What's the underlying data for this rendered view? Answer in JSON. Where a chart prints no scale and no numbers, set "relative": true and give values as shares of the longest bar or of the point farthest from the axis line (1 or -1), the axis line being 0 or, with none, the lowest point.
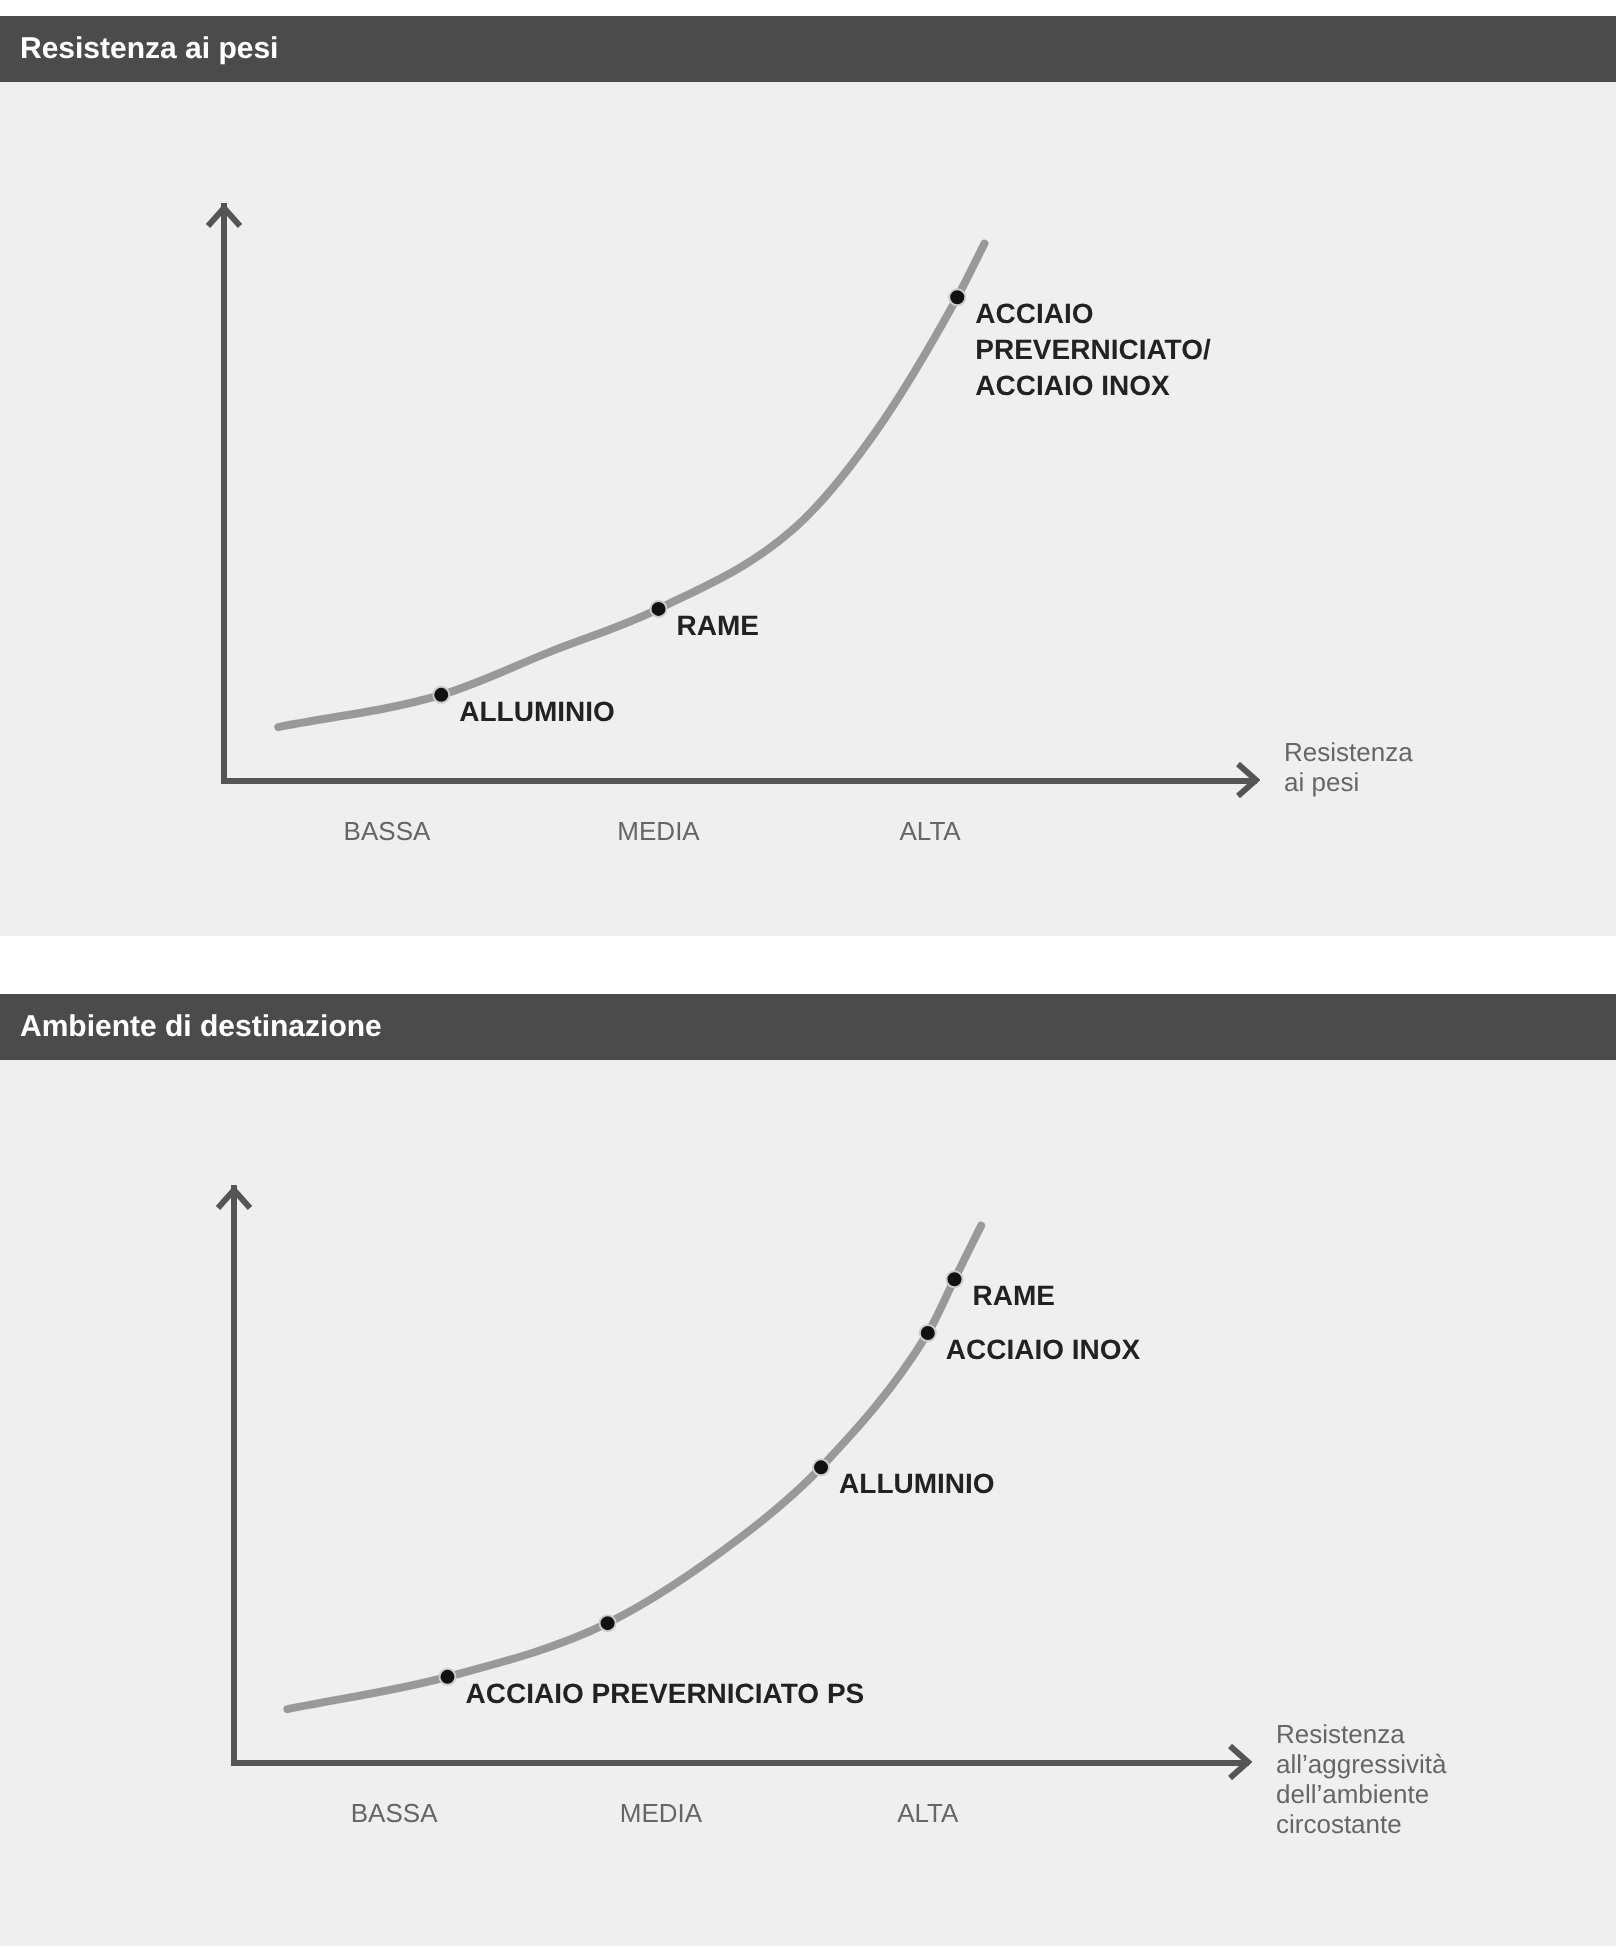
{
  "chart_data": [
    {
      "type": "line",
      "title": "Resistenza ai pesi",
      "xlabel": "Resistenza\nai pesi",
      "relative": true,
      "grid": false,
      "legend": false,
      "categories": [
        null,
        null,
        null,
        null,
        null,
        null,
        "BASSA",
        null,
        null,
        null,
        null,
        null,
        null,
        null,
        null,
        null,
        "MEDIA",
        null,
        null,
        null,
        null,
        null,
        null,
        null,
        null,
        null,
        "ALTA",
        null,
        null,
        null,
        null,
        null,
        null,
        null,
        null,
        null,
        null,
        null,
        null
      ],
      "series": [
        {
          "type": "line",
          "color": "#999999",
          "marker": "none",
          "values": [
            null,
            null,
            0.1,
            null,
            null,
            null,
            null,
            null,
            0.16,
            null,
            null,
            null,
            0.24,
            null,
            null,
            null,
            0.32,
            null,
            null,
            null,
            null,
            0.47,
            null,
            null,
            0.65,
            null,
            null,
            0.9,
            1,
            null,
            null,
            null,
            null,
            null,
            null,
            null,
            null,
            null,
            null
          ]
        },
        {
          "type": "scatter",
          "color": "#111111",
          "marker": "circle",
          "values": [
            null,
            null,
            null,
            null,
            null,
            null,
            null,
            null,
            0.16,
            null,
            null,
            null,
            null,
            null,
            null,
            null,
            0.32,
            null,
            null,
            null,
            null,
            null,
            null,
            null,
            null,
            null,
            null,
            0.9,
            null,
            null,
            null,
            null,
            null,
            null,
            null,
            null,
            null,
            null,
            null
          ]
        }
      ],
      "annotations": [
        "ALLUMINIO",
        "RAME",
        "ACCIAIO\nPREVERNICIATO/\nACCIAIO INOX"
      ]
    },
    {
      "type": "line",
      "title": "Ambiente di destinazione",
      "xlabel": "Resistenza\nall’aggressività\ndell’ambiente\ncircostante",
      "relative": true,
      "grid": false,
      "legend": false,
      "categories": [
        null,
        null,
        null,
        null,
        null,
        null,
        "BASSA",
        null,
        null,
        null,
        null,
        null,
        null,
        null,
        null,
        null,
        "MEDIA",
        null,
        null,
        null,
        null,
        null,
        null,
        null,
        null,
        null,
        "ALTA",
        null,
        null,
        null,
        null,
        null,
        null,
        null,
        null,
        null,
        null,
        null,
        null
      ],
      "series": [
        {
          "type": "line",
          "color": "#999999",
          "marker": "none",
          "values": [
            null,
            null,
            0.1,
            null,
            null,
            null,
            null,
            null,
            0.16,
            null,
            null,
            null,
            null,
            null,
            0.26,
            null,
            null,
            null,
            null,
            0.42,
            null,
            null,
            0.55,
            null,
            null,
            null,
            0.8,
            0.9,
            1,
            null,
            null,
            null,
            null,
            null,
            null,
            null,
            null,
            null,
            null
          ]
        },
        {
          "type": "scatter",
          "color": "#111111",
          "marker": "circle",
          "values": [
            null,
            null,
            null,
            null,
            null,
            null,
            null,
            null,
            0.16,
            null,
            null,
            null,
            null,
            null,
            null,
            null,
            null,
            null,
            null,
            null,
            null,
            null,
            0.55,
            null,
            null,
            null,
            0.8,
            0.9,
            null,
            null,
            null,
            null,
            null,
            null,
            null,
            null,
            null,
            null,
            null
          ]
        },
        {
          "type": "scatter",
          "color": "#111111",
          "marker": "circle",
          "values": [
            null,
            null,
            null,
            null,
            null,
            null,
            null,
            null,
            null,
            null,
            null,
            null,
            null,
            null,
            0.26,
            null,
            null,
            null,
            null,
            null,
            null,
            null,
            null,
            null,
            null,
            null,
            null,
            null,
            null,
            null,
            null,
            null,
            null,
            null,
            null,
            null,
            null,
            null,
            null
          ]
        }
      ],
      "annotations": [
        "ACCIAIO PREVERNICIATO PS",
        "ALLUMINIO",
        "ACCIAIO INOX",
        "RAME"
      ]
    }
  ]
}
